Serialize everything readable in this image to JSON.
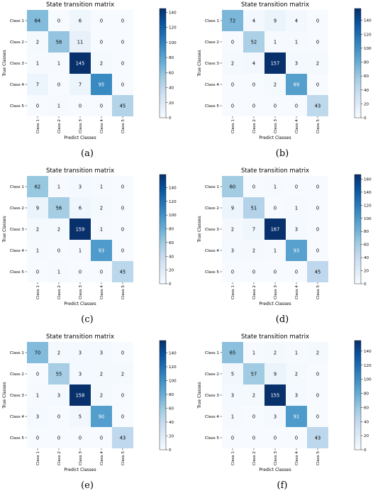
{
  "chart_data": [
    {
      "type": "heatmap",
      "caption": "(a)",
      "title": "State transition matrix",
      "xlabel": "Predict Classes",
      "ylabel": "True Classes",
      "x_categories": [
        "Class 1",
        "Class 2",
        "Class 3",
        "Class 4",
        "Class 5"
      ],
      "y_categories": [
        "Class 1",
        "Class 2",
        "Class 3",
        "Class 4",
        "Class 5"
      ],
      "matrix": [
        [
          64,
          0,
          6,
          0,
          0
        ],
        [
          2,
          58,
          11,
          0,
          0
        ],
        [
          1,
          1,
          145,
          2,
          0
        ],
        [
          7,
          0,
          7,
          95,
          0
        ],
        [
          0,
          1,
          0,
          0,
          45
        ]
      ],
      "colorbar": {
        "min": 0,
        "max": 145,
        "ticks": [
          0,
          20,
          40,
          60,
          80,
          100,
          120,
          140
        ]
      }
    },
    {
      "type": "heatmap",
      "caption": "(b)",
      "title": "State transition matrix",
      "xlabel": "Predict Classes",
      "ylabel": "True Classes",
      "x_categories": [
        "Class 1",
        "Class 2",
        "Class 3",
        "Class 4",
        "Class 5"
      ],
      "y_categories": [
        "Class 1",
        "Class 2",
        "Class 3",
        "Class 4",
        "Class 5"
      ],
      "matrix": [
        [
          72,
          4,
          9,
          4,
          0
        ],
        [
          0,
          52,
          1,
          1,
          0
        ],
        [
          2,
          4,
          157,
          3,
          2
        ],
        [
          0,
          0,
          2,
          89,
          0
        ],
        [
          0,
          0,
          0,
          0,
          43
        ]
      ],
      "colorbar": {
        "min": 0,
        "max": 157,
        "ticks": [
          0,
          20,
          40,
          60,
          80,
          100,
          120,
          140
        ]
      }
    },
    {
      "type": "heatmap",
      "caption": "(c)",
      "title": "State transition matrix",
      "xlabel": "Predict Classes",
      "ylabel": "True Classes",
      "x_categories": [
        "Class 1",
        "Class 2",
        "Class 3",
        "Class 4",
        "Class 5"
      ],
      "y_categories": [
        "Class 1",
        "Class 2",
        "Class 3",
        "Class 4",
        "Class 5"
      ],
      "matrix": [
        [
          62,
          1,
          3,
          1,
          0
        ],
        [
          9,
          56,
          6,
          2,
          0
        ],
        [
          2,
          2,
          159,
          1,
          0
        ],
        [
          1,
          0,
          1,
          93,
          0
        ],
        [
          0,
          1,
          0,
          0,
          45
        ]
      ],
      "colorbar": {
        "min": 0,
        "max": 159,
        "ticks": [
          0,
          20,
          40,
          60,
          80,
          100,
          120,
          140
        ]
      }
    },
    {
      "type": "heatmap",
      "caption": "(d)",
      "title": "State transition matrix",
      "xlabel": "Predict Classes",
      "ylabel": "True Classes",
      "x_categories": [
        "Class 1",
        "Class 2",
        "Class 3",
        "Class 4",
        "Class 5"
      ],
      "y_categories": [
        "Class 1",
        "Class 2",
        "Class 3",
        "Class 4",
        "Class 5"
      ],
      "matrix": [
        [
          60,
          0,
          1,
          0,
          0
        ],
        [
          9,
          51,
          0,
          1,
          0
        ],
        [
          2,
          7,
          167,
          3,
          0
        ],
        [
          3,
          2,
          1,
          93,
          0
        ],
        [
          0,
          0,
          0,
          0,
          45
        ]
      ],
      "colorbar": {
        "min": 0,
        "max": 167,
        "ticks": [
          0,
          20,
          40,
          60,
          80,
          100,
          120,
          140,
          160
        ]
      }
    },
    {
      "type": "heatmap",
      "caption": "(e)",
      "title": "State transition matrix",
      "xlabel": "Predict Classes",
      "ylabel": "True Classes",
      "x_categories": [
        "Class 1",
        "Class 2",
        "Class 3",
        "Class 4",
        "Class 5"
      ],
      "y_categories": [
        "Class 1",
        "Class 2",
        "Class 3",
        "Class 4",
        "Class 5"
      ],
      "matrix": [
        [
          70,
          2,
          3,
          3,
          0
        ],
        [
          0,
          55,
          3,
          2,
          2
        ],
        [
          1,
          3,
          158,
          2,
          0
        ],
        [
          3,
          0,
          5,
          90,
          0
        ],
        [
          0,
          0,
          0,
          0,
          43
        ]
      ],
      "colorbar": {
        "min": 0,
        "max": 158,
        "ticks": [
          0,
          20,
          40,
          60,
          80,
          100,
          120,
          140
        ]
      }
    },
    {
      "type": "heatmap",
      "caption": "(f)",
      "title": "State transition matrix",
      "xlabel": "Predict Classes",
      "ylabel": "True Classes",
      "x_categories": [
        "Class 1",
        "Class 2",
        "Class 3",
        "Class 4",
        "Class 5"
      ],
      "y_categories": [
        "Class 1",
        "Class 2",
        "Class 3",
        "Class 4",
        "Class 5"
      ],
      "matrix": [
        [
          65,
          1,
          2,
          1,
          2
        ],
        [
          5,
          57,
          9,
          2,
          0
        ],
        [
          3,
          2,
          155,
          3,
          0
        ],
        [
          1,
          0,
          3,
          91,
          0
        ],
        [
          0,
          0,
          0,
          0,
          43
        ]
      ],
      "colorbar": {
        "min": 0,
        "max": 155,
        "ticks": [
          0,
          20,
          40,
          60,
          80,
          100,
          120,
          140
        ]
      }
    }
  ]
}
